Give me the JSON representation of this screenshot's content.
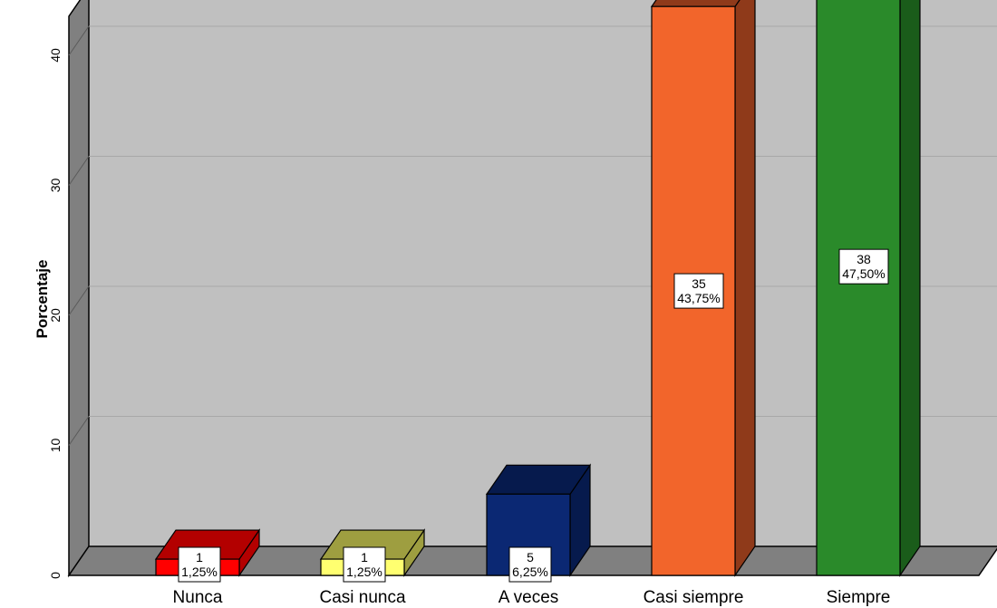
{
  "chart_data": {
    "type": "bar",
    "title": "",
    "xlabel": "",
    "ylabel": "Porcentaje",
    "ylim": [
      0,
      43
    ],
    "yticks": [
      0,
      10,
      20,
      30,
      40
    ],
    "grid": true,
    "legend": "none",
    "style": "3d",
    "categories": [
      "Nunca",
      "Casi nunca",
      "A veces",
      "Casi siempre",
      "Siempre"
    ],
    "values": [
      1.25,
      1.25,
      6.25,
      43.75,
      47.5
    ],
    "counts": [
      1,
      1,
      5,
      35,
      38
    ],
    "data_labels": [
      [
        "1",
        "1,25%"
      ],
      [
        "1",
        "1,25%"
      ],
      [
        "5",
        "6,25%"
      ],
      [
        "35",
        "43,75%"
      ],
      [
        "38",
        "47,50%"
      ]
    ],
    "colors": {
      "front": [
        "#ff0000",
        "#ffff70",
        "#0b2873",
        "#f2652b",
        "#2a8a2a"
      ],
      "top": [
        "#b30000",
        "#9e9e40",
        "#061a4d",
        "#8f3a1a",
        "#1a5c1a"
      ],
      "side": [
        "#b30000",
        "#9e9e40",
        "#061a4d",
        "#8f3a1a",
        "#1a5c1a"
      ],
      "wall": "#c0c0c0",
      "wall_side": "#808080",
      "floor": "#808080",
      "gridline": "#a8a8a8"
    }
  }
}
